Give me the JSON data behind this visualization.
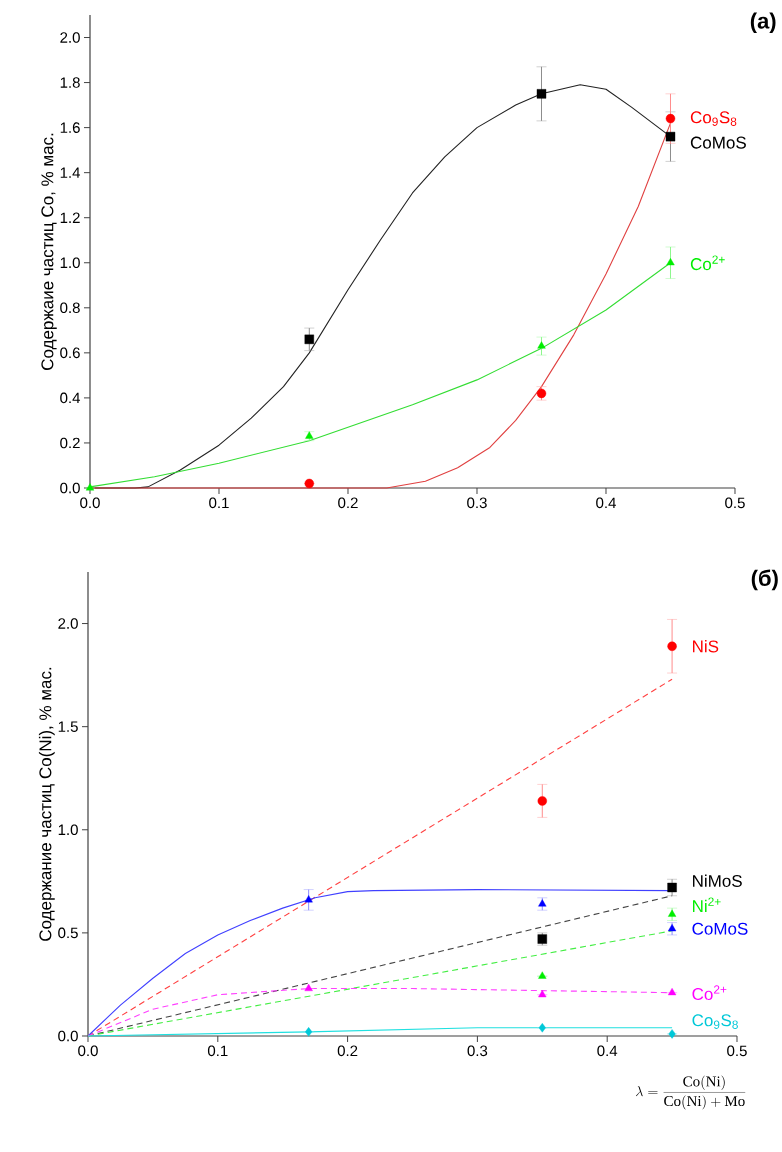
{
  "chart_data": [
    {
      "type": "scatter",
      "title": "(а)",
      "ylabel": "Содержаие частиц Co, % мас.",
      "xlim": [
        0,
        0.5
      ],
      "ylim": [
        0,
        2.1
      ],
      "xticks": [
        {
          "value": 0,
          "label": "0.0"
        },
        0.1,
        0.2,
        0.3,
        0.4,
        0.5
      ],
      "yticks": [
        {
          "value": 0,
          "label": "0.0"
        },
        0.2,
        0.4,
        0.6,
        0.8,
        {
          "value": 1,
          "label": "1.0"
        },
        1.2,
        1.4,
        1.6,
        1.8,
        {
          "value": 2,
          "label": "2.0"
        }
      ],
      "series": [
        {
          "type": "line",
          "color": "#222222",
          "line_style": "solid",
          "x": [
            0,
            0.035,
            0.045,
            0.07,
            0.1,
            0.125,
            0.15,
            0.17,
            0.2,
            0.225,
            0.25,
            0.275,
            0.3,
            0.33,
            0.35,
            0.38,
            0.4,
            0.42,
            0.45
          ],
          "values": [
            0,
            0,
            0.005,
            0.08,
            0.19,
            0.31,
            0.45,
            0.6,
            0.88,
            1.1,
            1.31,
            1.47,
            1.6,
            1.7,
            1.75,
            1.79,
            1.77,
            1.69,
            1.56
          ]
        },
        {
          "type": "line",
          "color": "#e04040",
          "line_style": "solid",
          "x": [
            0,
            0.23,
            0.26,
            0.285,
            0.31,
            0.33,
            0.35,
            0.375,
            0.4,
            0.425,
            0.45
          ],
          "values": [
            0,
            0,
            0.03,
            0.09,
            0.18,
            0.3,
            0.45,
            0.68,
            0.95,
            1.25,
            1.62
          ]
        },
        {
          "type": "line",
          "color": "#33dd33",
          "line_style": "solid",
          "x": [
            0,
            0.05,
            0.1,
            0.17,
            0.25,
            0.3,
            0.35,
            0.4,
            0.45
          ],
          "values": [
            0.005,
            0.05,
            0.11,
            0.21,
            0.37,
            0.48,
            0.62,
            0.79,
            1.0
          ]
        },
        {
          "name": "CoMoS",
          "color": "#000000",
          "marker": "square",
          "x": [
            0.17,
            0.35,
            0.45
          ],
          "values": [
            0.66,
            1.75,
            1.56
          ],
          "errors": [
            0.05,
            0.12,
            0.11
          ]
        },
        {
          "name": "Co$_{9}$S$_{8}$",
          "color": "#ff0000",
          "marker": "circle",
          "x": [
            0.17,
            0.35,
            0.45
          ],
          "values": [
            0.02,
            0.42,
            1.64
          ],
          "errors": [
            null,
            0.03,
            0.11
          ]
        },
        {
          "name": "Co$^{2+}$",
          "color": "#00ee00",
          "marker": "triangle",
          "x": [
            0,
            0.17,
            0.35,
            0.45
          ],
          "values": [
            0,
            0.23,
            0.63,
            1.0
          ],
          "errors": [
            null,
            0.02,
            0.04,
            0.07
          ]
        }
      ]
    },
    {
      "type": "scatter",
      "title": "(б)",
      "ylabel": "Содержание частиц Co(Ni), % мас.",
      "xlabel": "\\lambda = \\frac{\\mathrm{Co(Ni)}}{\\mathrm{Co(Ni)} + \\mathrm{Mo}}",
      "xlim": [
        0,
        0.5
      ],
      "ylim": [
        0,
        2.25
      ],
      "xticks": [
        {
          "value": 0,
          "label": "0.0"
        },
        0.1,
        0.2,
        0.3,
        0.4,
        0.5
      ],
      "yticks": [
        {
          "value": 0,
          "label": "0.0"
        },
        0.5,
        {
          "value": 1,
          "label": "1.0"
        },
        1.5,
        {
          "value": 2,
          "label": "2.0"
        }
      ],
      "series": [
        {
          "type": "line",
          "color": "#ff4040",
          "line_style": "dashed",
          "x": [
            0,
            0.45
          ],
          "values": [
            0,
            1.73
          ]
        },
        {
          "type": "line",
          "color": "#4040ff",
          "line_style": "solid",
          "x": [
            0,
            0.025,
            0.05,
            0.075,
            0.1,
            0.125,
            0.15,
            0.175,
            0.2,
            0.22,
            0.3,
            0.45
          ],
          "values": [
            0,
            0.15,
            0.28,
            0.4,
            0.49,
            0.56,
            0.62,
            0.67,
            0.7,
            0.705,
            0.71,
            0.705
          ]
        },
        {
          "type": "line",
          "color": "#444444",
          "line_style": "dashed",
          "x": [
            0,
            0.45
          ],
          "values": [
            0,
            0.68
          ]
        },
        {
          "type": "line",
          "color": "#44ee44",
          "line_style": "dashed",
          "x": [
            0,
            0.45
          ],
          "values": [
            0,
            0.51
          ]
        },
        {
          "type": "line",
          "color": "#ff40ff",
          "line_style": "dashed",
          "x": [
            0,
            0.05,
            0.1,
            0.17,
            0.25,
            0.35,
            0.45
          ],
          "values": [
            0,
            0.13,
            0.2,
            0.23,
            0.23,
            0.22,
            0.21
          ]
        },
        {
          "type": "line",
          "color": "#20e0e0",
          "line_style": "solid",
          "x": [
            0,
            0.17,
            0.3,
            0.45
          ],
          "values": [
            0,
            0.02,
            0.04,
            0.04
          ]
        },
        {
          "name": "NiS",
          "color": "#ff0000",
          "marker": "circle",
          "x": [
            0.35,
            0.45
          ],
          "values": [
            1.14,
            1.89
          ],
          "errors": [
            0.08,
            0.13
          ]
        },
        {
          "name": "CoMoS",
          "color": "#0000ff",
          "marker": "triangle",
          "x": [
            0.17,
            0.35,
            0.45
          ],
          "values": [
            0.66,
            0.64,
            0.52
          ],
          "errors": [
            0.05,
            0.03,
            0.03
          ]
        },
        {
          "name": "NiMoS",
          "color": "#000000",
          "marker": "square",
          "x": [
            0.35,
            0.45
          ],
          "values": [
            0.47,
            0.72
          ],
          "errors": [
            0.03,
            0.04
          ]
        },
        {
          "name": "Ni$^{2+}$",
          "color": "#00ee00",
          "marker": "triangle",
          "x": [
            0.35,
            0.45
          ],
          "values": [
            0.29,
            0.59
          ],
          "errors": [
            null,
            0.03
          ]
        },
        {
          "name": "Co$^{2+}$",
          "color": "#ff00ff",
          "marker": "triangle",
          "x": [
            0.17,
            0.35,
            0.45
          ],
          "values": [
            0.23,
            0.2,
            0.21
          ],
          "errors": [
            null,
            null,
            null
          ]
        },
        {
          "name": "Co$_{9}$S$_{8}$",
          "color": "#00c8d8",
          "marker": "diamond",
          "x": [
            0.17,
            0.35,
            0.45
          ],
          "values": [
            0.02,
            0.04,
            0.01
          ],
          "errors": [
            null,
            null,
            null
          ]
        }
      ]
    }
  ]
}
